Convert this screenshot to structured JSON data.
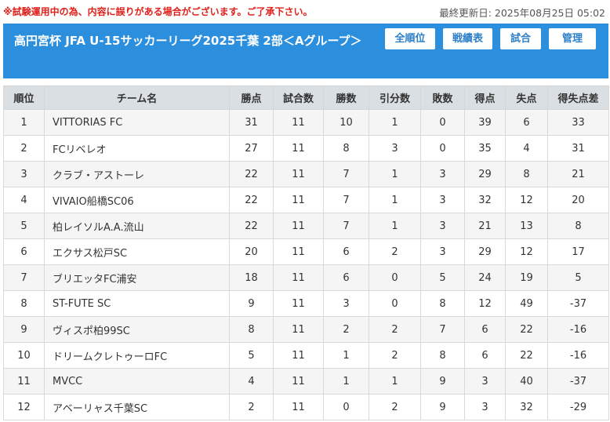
{
  "notice": "※試験運用中の為、内容に誤りがある場合がございます。ご了承下さい。",
  "updated": "最終更新日: 2025年08月25日 05:02",
  "title": "高円宮杯 JFA U-15サッカーリーグ2025千葉 2部＜Aグループ＞",
  "nav": [
    "全順位",
    "戦績表",
    "試合",
    "管理"
  ],
  "columns": [
    "順位",
    "チーム名",
    "勝点",
    "試合数",
    "勝数",
    "引分数",
    "敗数",
    "得点",
    "失点",
    "得失点差"
  ],
  "rows": [
    [
      "1",
      "VITTORIAS FC",
      "31",
      "11",
      "10",
      "1",
      "0",
      "39",
      "6",
      "33"
    ],
    [
      "2",
      "FCリベレオ",
      "27",
      "11",
      "8",
      "3",
      "0",
      "35",
      "4",
      "31"
    ],
    [
      "3",
      "クラブ・アストーレ",
      "22",
      "11",
      "7",
      "1",
      "3",
      "29",
      "8",
      "21"
    ],
    [
      "4",
      "VIVAIO船橋SC06",
      "22",
      "11",
      "7",
      "1",
      "3",
      "32",
      "12",
      "20"
    ],
    [
      "5",
      "柏レイソルA.A.流山",
      "22",
      "11",
      "7",
      "1",
      "3",
      "21",
      "13",
      "8"
    ],
    [
      "6",
      "エクサス松戸SC",
      "20",
      "11",
      "6",
      "2",
      "3",
      "29",
      "12",
      "17"
    ],
    [
      "7",
      "ブリエッタFC浦安",
      "18",
      "11",
      "6",
      "0",
      "5",
      "24",
      "19",
      "5"
    ],
    [
      "8",
      "ST-FUTE SC",
      "9",
      "11",
      "3",
      "0",
      "8",
      "12",
      "49",
      "-37"
    ],
    [
      "9",
      "ヴィスポ柏99SC",
      "8",
      "11",
      "2",
      "2",
      "7",
      "6",
      "22",
      "-16"
    ],
    [
      "10",
      "ドリームクレトゥーロFC",
      "5",
      "11",
      "1",
      "2",
      "8",
      "6",
      "22",
      "-16"
    ],
    [
      "11",
      "MVCC",
      "4",
      "11",
      "1",
      "1",
      "9",
      "3",
      "40",
      "-37"
    ],
    [
      "12",
      "アベーリャス千葉SC",
      "2",
      "11",
      "0",
      "2",
      "9",
      "3",
      "32",
      "-29"
    ]
  ]
}
